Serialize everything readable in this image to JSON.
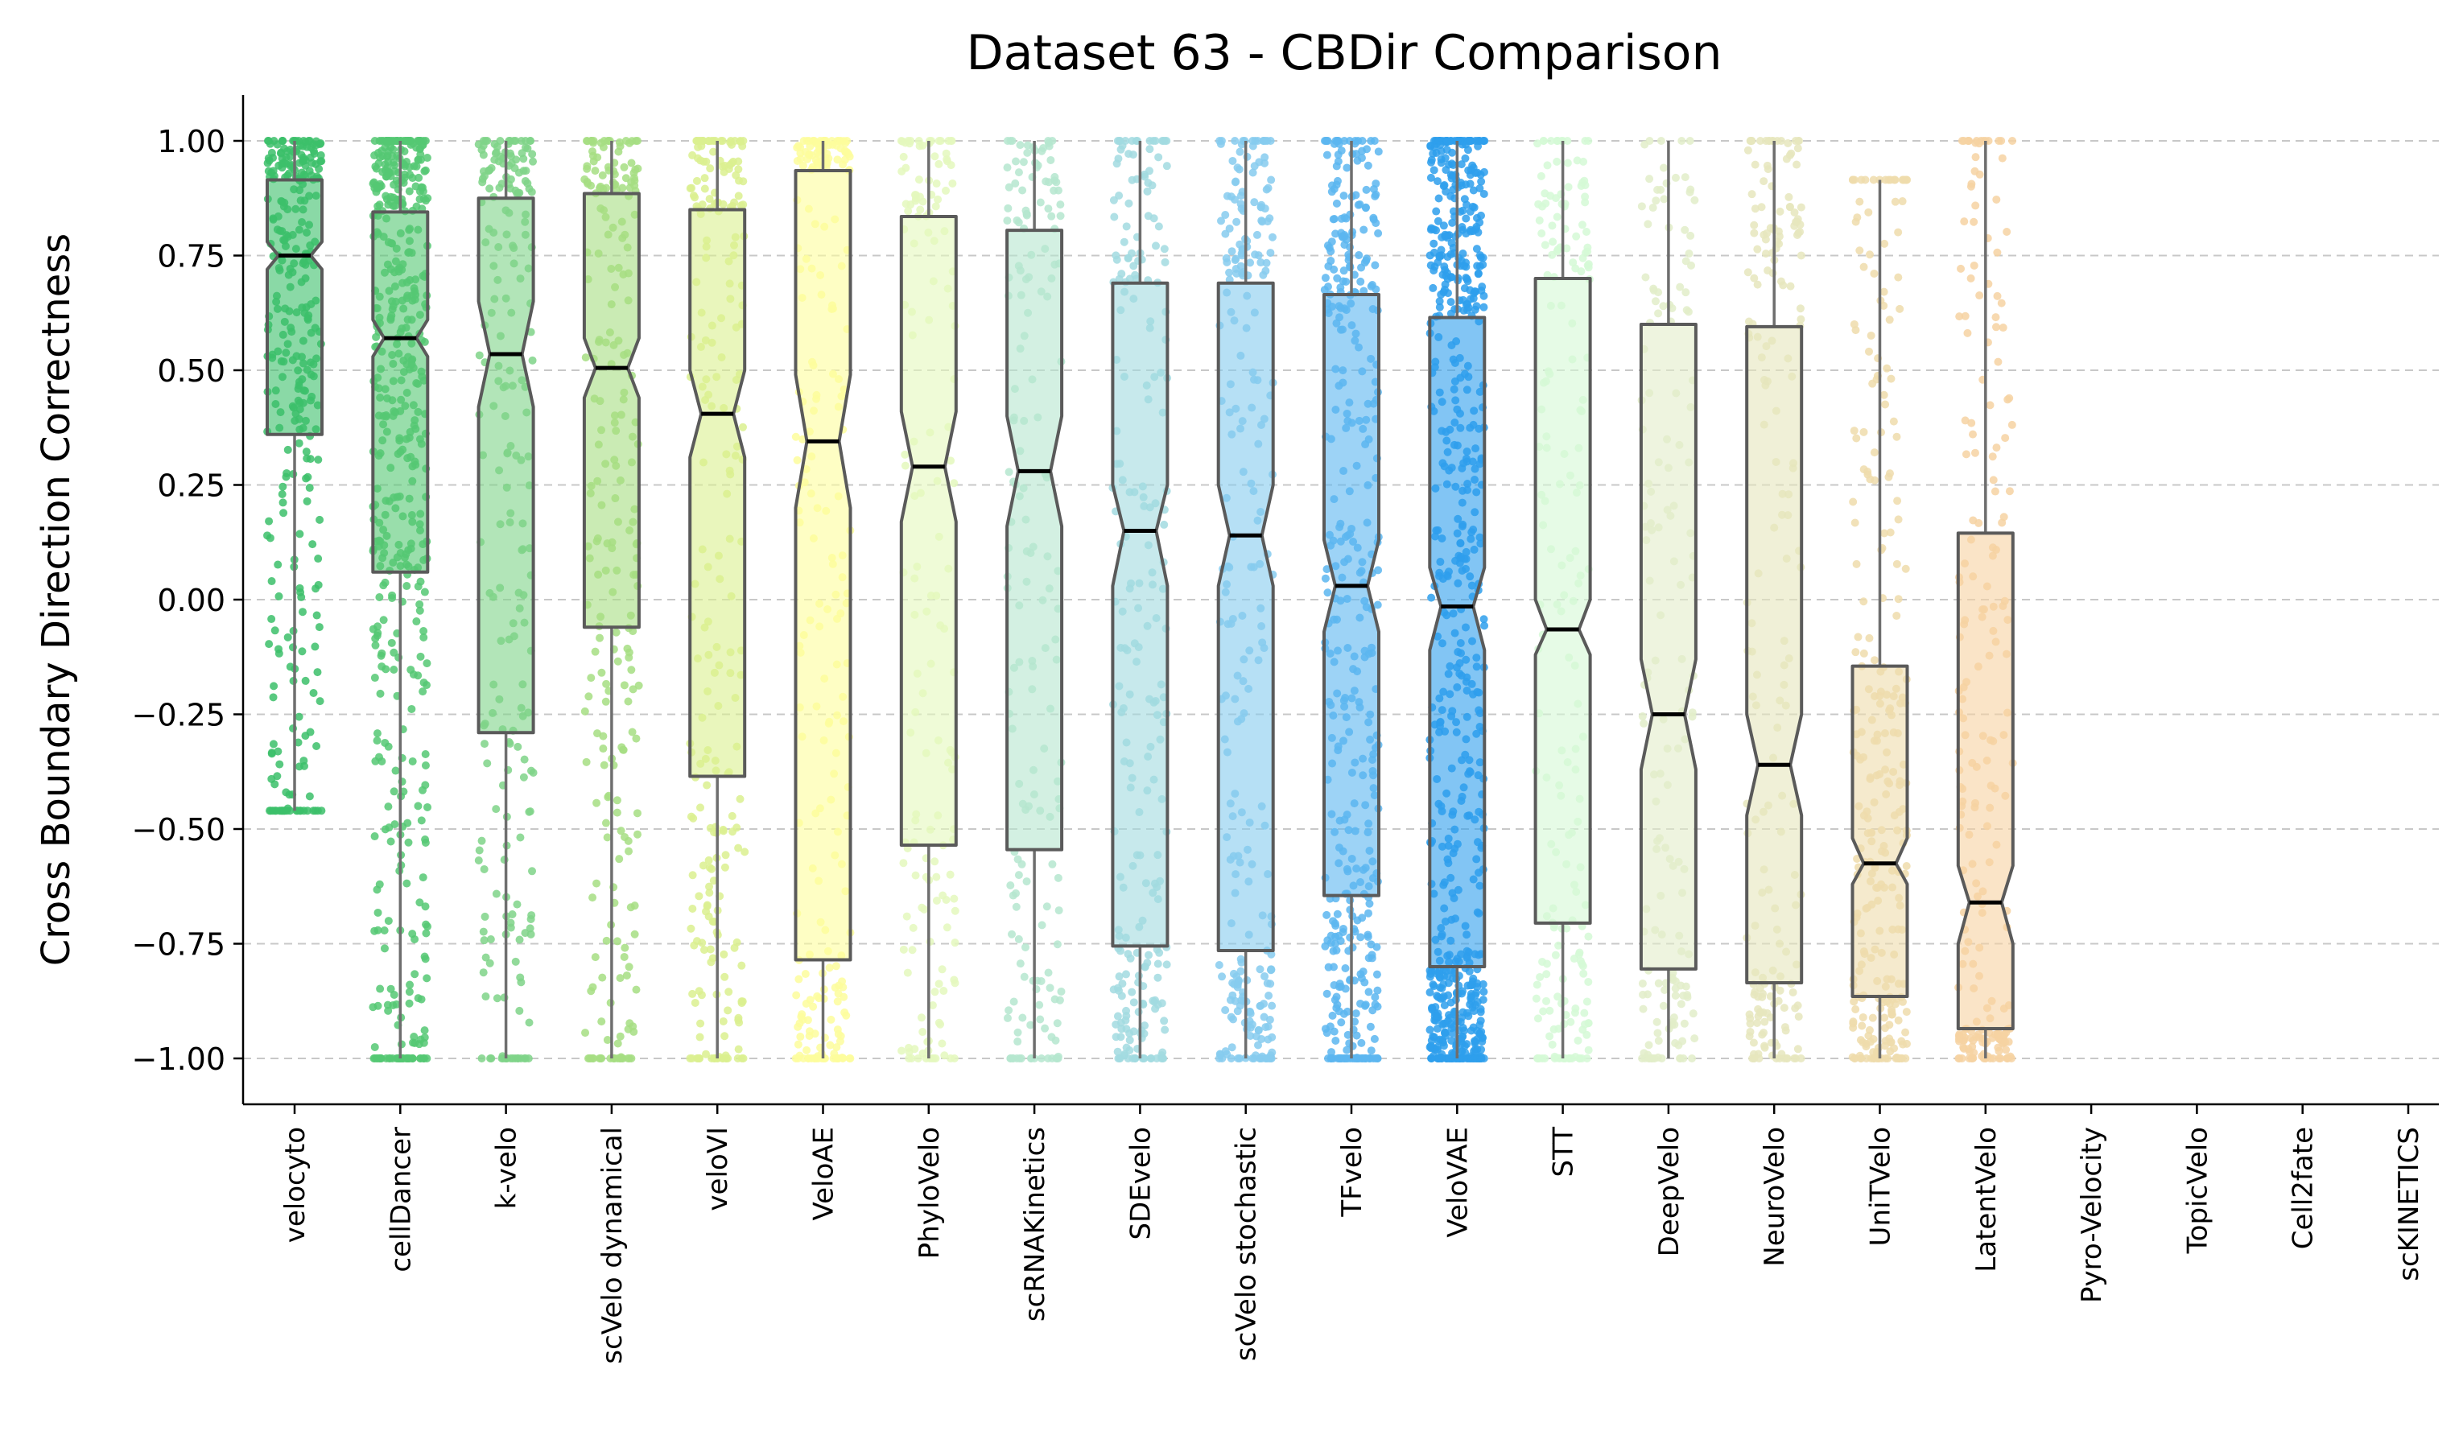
{
  "chart_data": {
    "type": "box",
    "title": "Dataset 63 - CBDir Comparison",
    "xlabel": "",
    "ylabel": "Cross Boundary Direction Correctness",
    "ylim": [
      -1.1,
      1.1
    ],
    "yticks": [
      1.0,
      0.75,
      0.5,
      0.25,
      0.0,
      -0.25,
      -0.5,
      -0.75,
      -1.0
    ],
    "ytick_labels": [
      "1.00",
      "0.75",
      "0.50",
      "0.25",
      "0.00",
      "−0.25",
      "−0.50",
      "−0.75",
      "−1.00"
    ],
    "grid": "horizontal dashed",
    "categories": [
      "velocyto",
      "cellDancer",
      "k-velo",
      "scVelo dynamical",
      "veloVI",
      "VeloAE",
      "PhyloVelo",
      "scRNAKinetics",
      "SDEvelo",
      "scVelo stochastic",
      "TFvelo",
      "VeloVAE",
      "STT",
      "DeepVelo",
      "NeuroVelo",
      "UniTVelo",
      "LatentVelo",
      "Pyro-Velocity",
      "TopicVelo",
      "Cell2fate",
      "scKINETICS"
    ],
    "series": [
      {
        "name": "velocyto",
        "color": "#3cbf6a",
        "q1": 0.36,
        "median": 0.75,
        "q3": 0.915,
        "whisker_low": -0.46,
        "whisker_high": 1.0,
        "notch_low": 0.72,
        "notch_high": 0.78,
        "n_points": 320
      },
      {
        "name": "cellDancer",
        "color": "#55c873",
        "q1": 0.06,
        "median": 0.57,
        "q3": 0.845,
        "whisker_low": -1.0,
        "whisker_high": 1.0,
        "notch_low": 0.53,
        "notch_high": 0.61,
        "n_points": 520
      },
      {
        "name": "k-velo",
        "color": "#7fd388",
        "q1": -0.29,
        "median": 0.535,
        "q3": 0.875,
        "whisker_low": -1.0,
        "whisker_high": 1.0,
        "notch_low": 0.42,
        "notch_high": 0.65,
        "n_points": 220
      },
      {
        "name": "scVelo dynamical",
        "color": "#a6de82",
        "q1": -0.06,
        "median": 0.505,
        "q3": 0.885,
        "whisker_low": -1.0,
        "whisker_high": 1.0,
        "notch_low": 0.44,
        "notch_high": 0.57,
        "n_points": 240
      },
      {
        "name": "veloVI",
        "color": "#dbf08f",
        "q1": -0.385,
        "median": 0.405,
        "q3": 0.85,
        "whisker_low": -1.0,
        "whisker_high": 1.0,
        "notch_low": 0.31,
        "notch_high": 0.5,
        "n_points": 240
      },
      {
        "name": "VeloAE",
        "color": "#fdfd9c",
        "q1": -0.785,
        "median": 0.345,
        "q3": 0.935,
        "whisker_low": -1.0,
        "whisker_high": 1.0,
        "notch_low": 0.2,
        "notch_high": 0.49,
        "n_points": 240
      },
      {
        "name": "PhyloVelo",
        "color": "#e4f8bd",
        "q1": -0.535,
        "median": 0.29,
        "q3": 0.835,
        "whisker_low": -1.0,
        "whisker_high": 1.0,
        "notch_low": 0.17,
        "notch_high": 0.41,
        "n_points": 160
      },
      {
        "name": "scRNAKinetics",
        "color": "#b5e6cf",
        "q1": -0.545,
        "median": 0.28,
        "q3": 0.805,
        "whisker_low": -1.0,
        "whisker_high": 1.0,
        "notch_low": 0.16,
        "notch_high": 0.4,
        "n_points": 180
      },
      {
        "name": "SDEvelo",
        "color": "#a2dbe0",
        "q1": -0.755,
        "median": 0.15,
        "q3": 0.69,
        "whisker_low": -1.0,
        "whisker_high": 1.0,
        "notch_low": 0.03,
        "notch_high": 0.25,
        "n_points": 240
      },
      {
        "name": "scVelo stochastic",
        "color": "#86cbee",
        "q1": -0.765,
        "median": 0.14,
        "q3": 0.69,
        "whisker_low": -1.0,
        "whisker_high": 1.0,
        "notch_low": 0.03,
        "notch_high": 0.25,
        "n_points": 260
      },
      {
        "name": "TFvelo",
        "color": "#5cb6f0",
        "q1": -0.645,
        "median": 0.03,
        "q3": 0.665,
        "whisker_low": -1.0,
        "whisker_high": 1.0,
        "notch_low": -0.07,
        "notch_high": 0.13,
        "n_points": 420
      },
      {
        "name": "VeloVAE",
        "color": "#2e9fec",
        "q1": -0.8,
        "median": -0.015,
        "q3": 0.615,
        "whisker_low": -1.0,
        "whisker_high": 1.0,
        "notch_low": -0.11,
        "notch_high": 0.07,
        "n_points": 700
      },
      {
        "name": "STT",
        "color": "#d5f9d6",
        "q1": -0.705,
        "median": -0.065,
        "q3": 0.7,
        "whisker_low": -1.0,
        "whisker_high": 1.0,
        "notch_low": -0.12,
        "notch_high": 0.0,
        "n_points": 200
      },
      {
        "name": "DeepVelo",
        "color": "#e2edc9",
        "q1": -0.805,
        "median": -0.25,
        "q3": 0.6,
        "whisker_low": -1.0,
        "whisker_high": 1.0,
        "notch_low": -0.37,
        "notch_high": -0.13,
        "n_points": 160
      },
      {
        "name": "NeuroVelo",
        "color": "#e6e6bd",
        "q1": -0.835,
        "median": -0.36,
        "q3": 0.595,
        "whisker_low": -1.0,
        "whisker_high": 1.0,
        "notch_low": -0.47,
        "notch_high": -0.25,
        "n_points": 200
      },
      {
        "name": "UniTVelo",
        "color": "#efdcac",
        "q1": -0.865,
        "median": -0.575,
        "q3": -0.145,
        "whisker_low": -1.0,
        "whisker_high": 0.915,
        "notch_low": -0.62,
        "notch_high": -0.52,
        "n_points": 280
      },
      {
        "name": "LatentVelo",
        "color": "#f6d2a2",
        "q1": -0.935,
        "median": -0.66,
        "q3": 0.145,
        "whisker_low": -1.0,
        "whisker_high": 1.0,
        "notch_low": -0.75,
        "notch_high": -0.58,
        "n_points": 220
      },
      {
        "name": "Pyro-Velocity",
        "color": "#cccccc",
        "empty": true
      },
      {
        "name": "TopicVelo",
        "color": "#cccccc",
        "empty": true
      },
      {
        "name": "Cell2fate",
        "color": "#cccccc",
        "empty": true
      },
      {
        "name": "scKINETICS",
        "color": "#cccccc",
        "empty": true
      }
    ]
  }
}
